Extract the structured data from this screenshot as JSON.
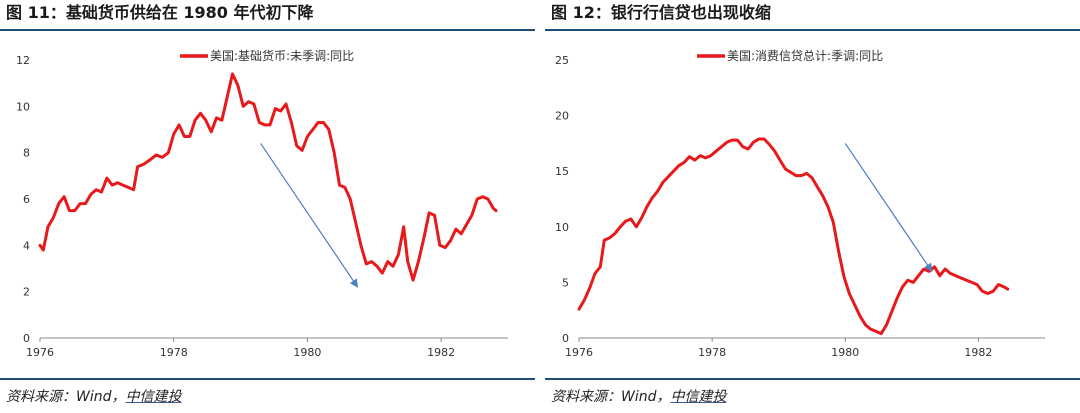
{
  "charts": [
    {
      "figure_title": "图 11：基础货币供给在 1980 年代初下降",
      "source_text": "资料来源：Wind，",
      "source_brand": "中信建投",
      "colors": {
        "line": "#e8191b",
        "arrow": "#4a7fc1",
        "axis": "#888888"
      },
      "chart_data": {
        "type": "line",
        "series": [
          {
            "name": "美国:基础货币:未季调:同比"
          }
        ],
        "xlim": [
          1976,
          1983
        ],
        "ylim": [
          0,
          12
        ],
        "x_ticks": [
          1976,
          1978,
          1980,
          1982
        ],
        "y_ticks": [
          0,
          2,
          4,
          6,
          8,
          10,
          12
        ],
        "legend_position": "top-center",
        "grid": false,
        "arrow": {
          "from": [
            1979.3,
            8.4
          ],
          "to": [
            1980.75,
            2.2
          ]
        },
        "points": [
          [
            1976.0,
            4.0
          ],
          [
            1976.05,
            3.8
          ],
          [
            1976.12,
            4.8
          ],
          [
            1976.2,
            5.2
          ],
          [
            1976.28,
            5.8
          ],
          [
            1976.36,
            6.1
          ],
          [
            1976.44,
            5.5
          ],
          [
            1976.52,
            5.5
          ],
          [
            1976.6,
            5.8
          ],
          [
            1976.68,
            5.8
          ],
          [
            1976.76,
            6.2
          ],
          [
            1976.84,
            6.4
          ],
          [
            1976.92,
            6.3
          ],
          [
            1977.0,
            6.9
          ],
          [
            1977.08,
            6.6
          ],
          [
            1977.16,
            6.7
          ],
          [
            1977.24,
            6.6
          ],
          [
            1977.32,
            6.5
          ],
          [
            1977.4,
            6.4
          ],
          [
            1977.46,
            7.4
          ],
          [
            1977.55,
            7.5
          ],
          [
            1977.65,
            7.7
          ],
          [
            1977.74,
            7.9
          ],
          [
            1977.83,
            7.8
          ],
          [
            1977.92,
            8.0
          ],
          [
            1978.0,
            8.8
          ],
          [
            1978.08,
            9.2
          ],
          [
            1978.16,
            8.7
          ],
          [
            1978.24,
            8.7
          ],
          [
            1978.32,
            9.4
          ],
          [
            1978.4,
            9.7
          ],
          [
            1978.48,
            9.4
          ],
          [
            1978.56,
            8.9
          ],
          [
            1978.64,
            9.5
          ],
          [
            1978.72,
            9.4
          ],
          [
            1978.8,
            10.4
          ],
          [
            1978.88,
            11.4
          ],
          [
            1978.96,
            10.9
          ],
          [
            1979.04,
            10.0
          ],
          [
            1979.12,
            10.2
          ],
          [
            1979.2,
            10.1
          ],
          [
            1979.28,
            9.3
          ],
          [
            1979.36,
            9.2
          ],
          [
            1979.44,
            9.2
          ],
          [
            1979.52,
            9.9
          ],
          [
            1979.6,
            9.8
          ],
          [
            1979.68,
            10.1
          ],
          [
            1979.76,
            9.3
          ],
          [
            1979.84,
            8.3
          ],
          [
            1979.92,
            8.1
          ],
          [
            1980.0,
            8.7
          ],
          [
            1980.08,
            9.0
          ],
          [
            1980.16,
            9.3
          ],
          [
            1980.24,
            9.3
          ],
          [
            1980.32,
            9.0
          ],
          [
            1980.4,
            8.0
          ],
          [
            1980.48,
            6.6
          ],
          [
            1980.56,
            6.5
          ],
          [
            1980.64,
            6.0
          ],
          [
            1980.72,
            5.0
          ],
          [
            1980.8,
            4.0
          ],
          [
            1980.88,
            3.2
          ],
          [
            1980.96,
            3.3
          ],
          [
            1981.04,
            3.1
          ],
          [
            1981.12,
            2.8
          ],
          [
            1981.2,
            3.3
          ],
          [
            1981.28,
            3.1
          ],
          [
            1981.36,
            3.6
          ],
          [
            1981.44,
            4.8
          ],
          [
            1981.5,
            3.3
          ],
          [
            1981.58,
            2.5
          ],
          [
            1981.66,
            3.3
          ],
          [
            1981.74,
            4.3
          ],
          [
            1981.82,
            5.4
          ],
          [
            1981.9,
            5.3
          ],
          [
            1981.98,
            4.0
          ],
          [
            1982.06,
            3.9
          ],
          [
            1982.14,
            4.2
          ],
          [
            1982.22,
            4.7
          ],
          [
            1982.3,
            4.5
          ],
          [
            1982.38,
            4.9
          ],
          [
            1982.46,
            5.3
          ],
          [
            1982.54,
            6.0
          ],
          [
            1982.62,
            6.1
          ],
          [
            1982.7,
            6.0
          ],
          [
            1982.78,
            5.6
          ],
          [
            1982.82,
            5.5
          ]
        ]
      }
    },
    {
      "figure_title": "图 12：银行行信贷也出现收缩",
      "source_text": "资料来源：Wind，",
      "source_brand": "中信建投",
      "colors": {
        "line": "#e8191b",
        "arrow": "#4a7fc1",
        "axis": "#888888"
      },
      "chart_data": {
        "type": "line",
        "series": [
          {
            "name": "美国:消费信贷总计:季调:同比"
          }
        ],
        "xlim": [
          1976,
          1983
        ],
        "ylim": [
          0,
          25
        ],
        "x_ticks": [
          1976,
          1978,
          1980,
          1982
        ],
        "y_ticks": [
          0,
          5,
          10,
          15,
          20,
          25
        ],
        "legend_position": "top-center",
        "grid": false,
        "arrow": {
          "from": [
            1980.0,
            17.5
          ],
          "to": [
            1981.3,
            6.0
          ]
        },
        "points": [
          [
            1976.0,
            2.6
          ],
          [
            1976.08,
            3.4
          ],
          [
            1976.16,
            4.5
          ],
          [
            1976.24,
            5.8
          ],
          [
            1976.32,
            6.4
          ],
          [
            1976.38,
            8.8
          ],
          [
            1976.46,
            9.0
          ],
          [
            1976.54,
            9.4
          ],
          [
            1976.62,
            10.0
          ],
          [
            1976.7,
            10.5
          ],
          [
            1976.78,
            10.7
          ],
          [
            1976.86,
            10.0
          ],
          [
            1976.94,
            10.8
          ],
          [
            1977.02,
            11.8
          ],
          [
            1977.1,
            12.6
          ],
          [
            1977.18,
            13.2
          ],
          [
            1977.26,
            14.0
          ],
          [
            1977.34,
            14.5
          ],
          [
            1977.42,
            15.0
          ],
          [
            1977.5,
            15.5
          ],
          [
            1977.58,
            15.8
          ],
          [
            1977.66,
            16.3
          ],
          [
            1977.74,
            16.0
          ],
          [
            1977.82,
            16.4
          ],
          [
            1977.9,
            16.2
          ],
          [
            1977.98,
            16.4
          ],
          [
            1978.06,
            16.8
          ],
          [
            1978.14,
            17.2
          ],
          [
            1978.22,
            17.6
          ],
          [
            1978.3,
            17.8
          ],
          [
            1978.38,
            17.8
          ],
          [
            1978.46,
            17.2
          ],
          [
            1978.54,
            17.0
          ],
          [
            1978.62,
            17.6
          ],
          [
            1978.7,
            17.9
          ],
          [
            1978.78,
            17.9
          ],
          [
            1978.86,
            17.4
          ],
          [
            1978.94,
            16.8
          ],
          [
            1979.02,
            16.0
          ],
          [
            1979.1,
            15.2
          ],
          [
            1979.18,
            14.9
          ],
          [
            1979.26,
            14.6
          ],
          [
            1979.34,
            14.6
          ],
          [
            1979.42,
            14.8
          ],
          [
            1979.5,
            14.4
          ],
          [
            1979.58,
            13.6
          ],
          [
            1979.66,
            12.8
          ],
          [
            1979.74,
            11.8
          ],
          [
            1979.82,
            10.4
          ],
          [
            1979.9,
            7.8
          ],
          [
            1979.98,
            5.5
          ],
          [
            1980.06,
            4.0
          ],
          [
            1980.14,
            3.0
          ],
          [
            1980.22,
            2.0
          ],
          [
            1980.3,
            1.2
          ],
          [
            1980.38,
            0.8
          ],
          [
            1980.46,
            0.6
          ],
          [
            1980.54,
            0.4
          ],
          [
            1980.62,
            1.2
          ],
          [
            1980.7,
            2.4
          ],
          [
            1980.78,
            3.6
          ],
          [
            1980.86,
            4.6
          ],
          [
            1980.94,
            5.2
          ],
          [
            1981.02,
            5.0
          ],
          [
            1981.1,
            5.6
          ],
          [
            1981.18,
            6.2
          ],
          [
            1981.26,
            6.0
          ],
          [
            1981.34,
            6.4
          ],
          [
            1981.42,
            5.6
          ],
          [
            1981.5,
            6.2
          ],
          [
            1981.58,
            5.8
          ],
          [
            1981.66,
            5.6
          ],
          [
            1981.74,
            5.4
          ],
          [
            1981.82,
            5.2
          ],
          [
            1981.9,
            5.0
          ],
          [
            1981.98,
            4.8
          ],
          [
            1982.06,
            4.2
          ],
          [
            1982.14,
            4.0
          ],
          [
            1982.22,
            4.2
          ],
          [
            1982.3,
            4.8
          ],
          [
            1982.38,
            4.6
          ],
          [
            1982.44,
            4.4
          ]
        ]
      }
    }
  ]
}
